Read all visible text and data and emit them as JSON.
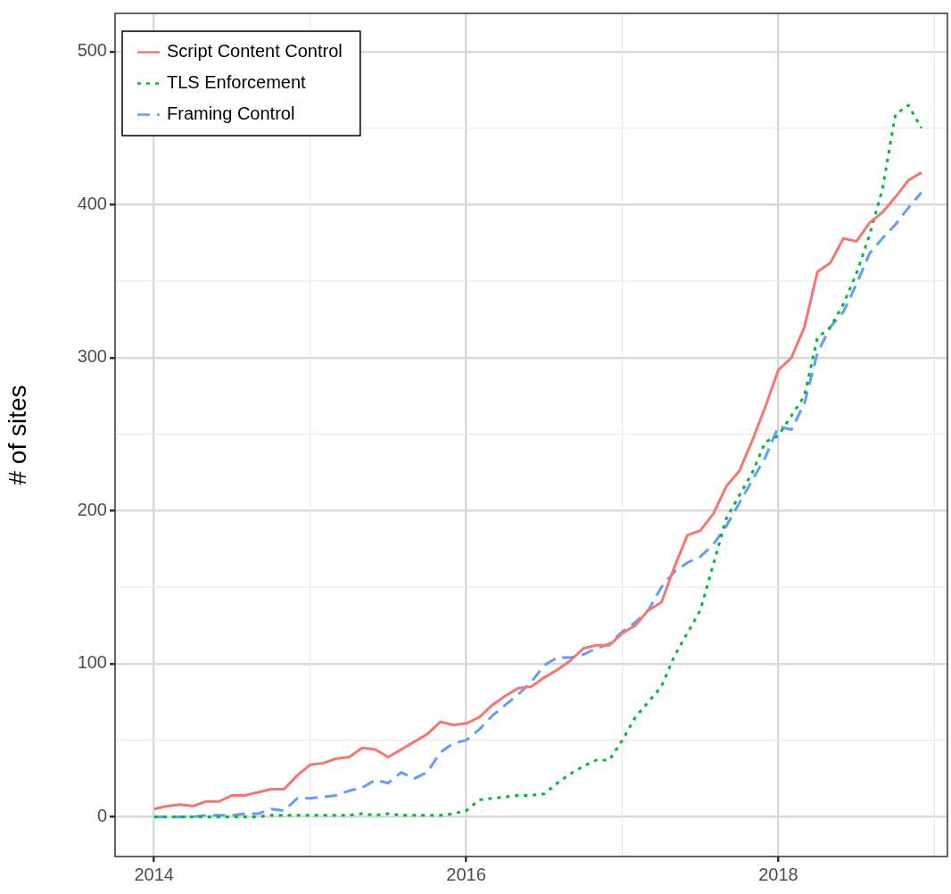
{
  "chart_data": {
    "type": "line",
    "ylabel": "# of sites",
    "x": [
      "2014-01",
      "2014-02",
      "2014-03",
      "2014-04",
      "2014-05",
      "2014-06",
      "2014-07",
      "2014-08",
      "2014-09",
      "2014-10",
      "2014-11",
      "2014-12",
      "2015-01",
      "2015-02",
      "2015-03",
      "2015-04",
      "2015-05",
      "2015-06",
      "2015-07",
      "2015-08",
      "2015-09",
      "2015-10",
      "2015-11",
      "2015-12",
      "2016-01",
      "2016-02",
      "2016-03",
      "2016-04",
      "2016-05",
      "2016-06",
      "2016-07",
      "2016-08",
      "2016-09",
      "2016-10",
      "2016-11",
      "2016-12",
      "2017-01",
      "2017-02",
      "2017-03",
      "2017-04",
      "2017-05",
      "2017-06",
      "2017-07",
      "2017-08",
      "2017-09",
      "2017-10",
      "2017-11",
      "2017-12",
      "2018-01",
      "2018-02",
      "2018-03",
      "2018-04",
      "2018-05",
      "2018-06",
      "2018-07",
      "2018-08",
      "2018-09",
      "2018-10",
      "2018-11",
      "2018-12"
    ],
    "series": [
      {
        "name": "Script Content Control",
        "color": "#f8766d",
        "line_style": "solid",
        "values": [
          5,
          7,
          8,
          7,
          10,
          10,
          14,
          14,
          16,
          18,
          18,
          27,
          34,
          35,
          38,
          39,
          45,
          44,
          39,
          44,
          49,
          54,
          62,
          60,
          61,
          65,
          73,
          79,
          84,
          85,
          91,
          96,
          102,
          110,
          112,
          112,
          120,
          125,
          135,
          140,
          163,
          184,
          187,
          198,
          216,
          226,
          246,
          268,
          292,
          300,
          320,
          356,
          362,
          378,
          376,
          388,
          395,
          405,
          416,
          421
        ]
      },
      {
        "name": "TLS Enforcement",
        "color": "#00ba38",
        "line_style": "dotted",
        "values": [
          0,
          0,
          0,
          0,
          0,
          0,
          0,
          0,
          0,
          1,
          1,
          1,
          1,
          1,
          1,
          1,
          2,
          1,
          2,
          1,
          1,
          1,
          1,
          2,
          4,
          11,
          12,
          13,
          14,
          14,
          15,
          22,
          28,
          33,
          37,
          37,
          50,
          65,
          75,
          85,
          105,
          120,
          135,
          165,
          195,
          210,
          225,
          245,
          249,
          262,
          275,
          313,
          320,
          335,
          355,
          380,
          410,
          459,
          465,
          450
        ]
      },
      {
        "name": "Framing Control",
        "color": "#619cff",
        "line_style": "dashed",
        "values": [
          0,
          0,
          0,
          0,
          1,
          1,
          1,
          2,
          2,
          5,
          4,
          12,
          12,
          13,
          14,
          17,
          19,
          24,
          22,
          29,
          25,
          29,
          42,
          48,
          50,
          57,
          66,
          73,
          80,
          88,
          99,
          104,
          104,
          106,
          110,
          113,
          121,
          127,
          135,
          150,
          160,
          166,
          170,
          178,
          190,
          205,
          220,
          235,
          255,
          253,
          270,
          303,
          320,
          330,
          348,
          368,
          378,
          387,
          398,
          408
        ]
      }
    ],
    "xlim": [
      "2013-10",
      "2019-02"
    ],
    "xticks": [
      "2014",
      "2016",
      "2018"
    ],
    "ylim": [
      -26,
      525
    ],
    "yticks": [
      0,
      100,
      200,
      300,
      400,
      500
    ],
    "grid": true,
    "legend": "top left",
    "marker": "none"
  }
}
